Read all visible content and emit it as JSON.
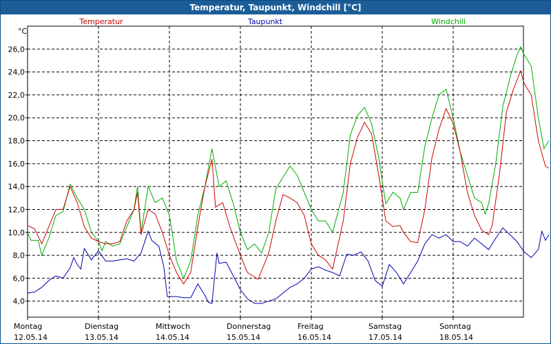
{
  "window": {
    "title": "Temperatur, Taupunkt, Windchill [°C]"
  },
  "chart_data": {
    "type": "line",
    "title": "Temperatur, Taupunkt, Windchill [°C]",
    "ylabel": "°C",
    "ylim": [
      2.6,
      28.0
    ],
    "xlim": [
      0,
      7
    ],
    "grid": true,
    "yticks": [
      "4,0",
      "6,0",
      "8,0",
      "10,0",
      "12,0",
      "14,0",
      "16,0",
      "18,0",
      "20,0",
      "22,0",
      "24,0",
      "26,0"
    ],
    "yticks_values": [
      4,
      6,
      8,
      10,
      12,
      14,
      16,
      18,
      20,
      22,
      24,
      26
    ],
    "days": [
      {
        "day": "Montag",
        "date": "12.05.14"
      },
      {
        "day": "Dienstag",
        "date": "13.05.14"
      },
      {
        "day": "Mittwoch",
        "date": "14.05.14"
      },
      {
        "day": "Donnerstag",
        "date": "15.05.14"
      },
      {
        "day": "Freitag",
        "date": "16.05.14"
      },
      {
        "day": "Samstag",
        "date": "17.05.14"
      },
      {
        "day": "Sonntag",
        "date": "18.05.14"
      }
    ],
    "series": [
      {
        "name": "Temperatur",
        "color": "#cc0000",
        "points": [
          [
            0,
            10.6
          ],
          [
            0.1,
            10.3
          ],
          [
            0.2,
            9.0
          ],
          [
            0.3,
            10.5
          ],
          [
            0.4,
            12.0
          ],
          [
            0.5,
            12.0
          ],
          [
            0.6,
            14.0
          ],
          [
            0.7,
            12.6
          ],
          [
            0.8,
            10.5
          ],
          [
            0.9,
            9.5
          ],
          [
            1.0,
            9.2
          ],
          [
            1.1,
            9.0
          ],
          [
            1.2,
            9.0
          ],
          [
            1.3,
            9.2
          ],
          [
            1.4,
            11.0
          ],
          [
            1.5,
            12.0
          ],
          [
            1.55,
            13.5
          ],
          [
            1.6,
            9.8
          ],
          [
            1.7,
            12.0
          ],
          [
            1.8,
            11.6
          ],
          [
            1.9,
            10.0
          ],
          [
            2.0,
            8.0
          ],
          [
            2.1,
            6.5
          ],
          [
            2.2,
            5.5
          ],
          [
            2.3,
            6.5
          ],
          [
            2.4,
            10.5
          ],
          [
            2.5,
            14.0
          ],
          [
            2.6,
            16.4
          ],
          [
            2.65,
            12.2
          ],
          [
            2.75,
            12.6
          ],
          [
            2.85,
            10.5
          ],
          [
            3.0,
            8.0
          ],
          [
            3.1,
            6.5
          ],
          [
            3.25,
            5.9
          ],
          [
            3.4,
            8.2
          ],
          [
            3.5,
            11.0
          ],
          [
            3.6,
            13.3
          ],
          [
            3.7,
            13.0
          ],
          [
            3.8,
            12.6
          ],
          [
            3.9,
            11.5
          ],
          [
            4.0,
            9.0
          ],
          [
            4.1,
            8.0
          ],
          [
            4.2,
            7.6
          ],
          [
            4.3,
            6.8
          ],
          [
            4.45,
            11.0
          ],
          [
            4.55,
            16.0
          ],
          [
            4.65,
            18.3
          ],
          [
            4.75,
            19.6
          ],
          [
            4.85,
            18.6
          ],
          [
            4.95,
            15.0
          ],
          [
            5.05,
            11.0
          ],
          [
            5.15,
            10.5
          ],
          [
            5.25,
            10.6
          ],
          [
            5.3,
            10.0
          ],
          [
            5.4,
            9.2
          ],
          [
            5.5,
            9.1
          ],
          [
            5.6,
            12.0
          ],
          [
            5.7,
            16.5
          ],
          [
            5.8,
            19.0
          ],
          [
            5.9,
            20.8
          ],
          [
            6.0,
            19.5
          ],
          [
            6.1,
            17.0
          ],
          [
            6.2,
            13.5
          ],
          [
            6.3,
            11.5
          ],
          [
            6.4,
            10.2
          ],
          [
            6.5,
            9.8
          ],
          [
            6.55,
            10.6
          ],
          [
            6.65,
            15.0
          ],
          [
            6.75,
            20.5
          ],
          [
            6.85,
            22.5
          ],
          [
            6.95,
            24.1
          ],
          [
            7.0,
            23.0
          ],
          [
            7.1,
            22.0
          ],
          [
            7.2,
            18.0
          ],
          [
            7.3,
            15.8
          ],
          [
            7.35,
            15.6
          ]
        ]
      },
      {
        "name": "Taupunkt",
        "color": "#0000aa",
        "points": [
          [
            0,
            4.7
          ],
          [
            0.1,
            4.8
          ],
          [
            0.2,
            5.2
          ],
          [
            0.3,
            5.8
          ],
          [
            0.4,
            6.2
          ],
          [
            0.5,
            6.0
          ],
          [
            0.6,
            6.9
          ],
          [
            0.65,
            7.8
          ],
          [
            0.7,
            7.2
          ],
          [
            0.75,
            6.8
          ],
          [
            0.8,
            8.6
          ],
          [
            0.9,
            7.6
          ],
          [
            1.0,
            8.4
          ],
          [
            1.1,
            7.5
          ],
          [
            1.2,
            7.5
          ],
          [
            1.3,
            7.6
          ],
          [
            1.4,
            7.7
          ],
          [
            1.5,
            7.5
          ],
          [
            1.6,
            8.2
          ],
          [
            1.7,
            10.1
          ],
          [
            1.75,
            9.3
          ],
          [
            1.85,
            8.8
          ],
          [
            1.92,
            7.0
          ],
          [
            1.97,
            4.4
          ],
          [
            2.1,
            4.4
          ],
          [
            2.2,
            4.3
          ],
          [
            2.3,
            4.3
          ],
          [
            2.4,
            5.5
          ],
          [
            2.5,
            4.5
          ],
          [
            2.55,
            3.9
          ],
          [
            2.6,
            3.8
          ],
          [
            2.67,
            8.2
          ],
          [
            2.7,
            7.3
          ],
          [
            2.8,
            7.4
          ],
          [
            2.9,
            6.2
          ],
          [
            3.0,
            5.0
          ],
          [
            3.1,
            4.2
          ],
          [
            3.2,
            3.8
          ],
          [
            3.3,
            3.8
          ],
          [
            3.4,
            4.0
          ],
          [
            3.5,
            4.2
          ],
          [
            3.6,
            4.7
          ],
          [
            3.7,
            5.2
          ],
          [
            3.8,
            5.5
          ],
          [
            3.9,
            6.0
          ],
          [
            4.0,
            6.8
          ],
          [
            4.1,
            7.0
          ],
          [
            4.2,
            6.7
          ],
          [
            4.3,
            6.5
          ],
          [
            4.4,
            6.2
          ],
          [
            4.5,
            8.1
          ],
          [
            4.6,
            8.0
          ],
          [
            4.7,
            8.3
          ],
          [
            4.8,
            7.5
          ],
          [
            4.9,
            5.8
          ],
          [
            5.0,
            5.3
          ],
          [
            5.1,
            7.2
          ],
          [
            5.2,
            6.5
          ],
          [
            5.3,
            5.5
          ],
          [
            5.4,
            6.5
          ],
          [
            5.5,
            7.5
          ],
          [
            5.6,
            9.0
          ],
          [
            5.7,
            9.8
          ],
          [
            5.8,
            9.5
          ],
          [
            5.9,
            9.8
          ],
          [
            6.0,
            9.2
          ],
          [
            6.1,
            9.2
          ],
          [
            6.2,
            8.8
          ],
          [
            6.3,
            9.5
          ],
          [
            6.4,
            9.0
          ],
          [
            6.5,
            8.5
          ],
          [
            6.6,
            9.5
          ],
          [
            6.7,
            10.4
          ],
          [
            6.8,
            9.8
          ],
          [
            6.9,
            9.2
          ],
          [
            7.0,
            8.3
          ],
          [
            7.1,
            7.8
          ],
          [
            7.2,
            8.5
          ],
          [
            7.25,
            10.1
          ],
          [
            7.3,
            9.3
          ],
          [
            7.35,
            9.8
          ]
        ]
      },
      {
        "name": "Windchill",
        "color": "#00aa00",
        "points": [
          [
            0,
            10.0
          ],
          [
            0.05,
            9.3
          ],
          [
            0.15,
            9.3
          ],
          [
            0.2,
            8.0
          ],
          [
            0.3,
            9.5
          ],
          [
            0.4,
            11.5
          ],
          [
            0.5,
            11.8
          ],
          [
            0.6,
            14.2
          ],
          [
            0.7,
            13.0
          ],
          [
            0.8,
            12.0
          ],
          [
            0.9,
            10.0
          ],
          [
            1.0,
            9.2
          ],
          [
            1.05,
            8.4
          ],
          [
            1.1,
            9.2
          ],
          [
            1.2,
            8.8
          ],
          [
            1.3,
            9.0
          ],
          [
            1.4,
            10.5
          ],
          [
            1.5,
            12.0
          ],
          [
            1.55,
            14.0
          ],
          [
            1.6,
            10.0
          ],
          [
            1.7,
            14.0
          ],
          [
            1.8,
            12.6
          ],
          [
            1.9,
            13.0
          ],
          [
            2.0,
            11.5
          ],
          [
            2.1,
            7.5
          ],
          [
            2.2,
            6.0
          ],
          [
            2.3,
            7.5
          ],
          [
            2.4,
            11.5
          ],
          [
            2.5,
            14.0
          ],
          [
            2.6,
            17.3
          ],
          [
            2.7,
            14.0
          ],
          [
            2.8,
            14.5
          ],
          [
            2.9,
            12.5
          ],
          [
            3.0,
            10.0
          ],
          [
            3.1,
            8.5
          ],
          [
            3.2,
            9.0
          ],
          [
            3.3,
            8.2
          ],
          [
            3.4,
            10.0
          ],
          [
            3.5,
            13.8
          ],
          [
            3.6,
            14.8
          ],
          [
            3.7,
            15.8
          ],
          [
            3.8,
            15.0
          ],
          [
            3.9,
            13.5
          ],
          [
            4.0,
            12.0
          ],
          [
            4.1,
            11.0
          ],
          [
            4.2,
            11.0
          ],
          [
            4.3,
            10.0
          ],
          [
            4.45,
            13.5
          ],
          [
            4.55,
            18.5
          ],
          [
            4.65,
            20.2
          ],
          [
            4.75,
            20.9
          ],
          [
            4.85,
            19.5
          ],
          [
            4.95,
            16.5
          ],
          [
            5.05,
            12.5
          ],
          [
            5.15,
            13.5
          ],
          [
            5.25,
            13.0
          ],
          [
            5.3,
            12.0
          ],
          [
            5.4,
            13.5
          ],
          [
            5.5,
            13.5
          ],
          [
            5.6,
            17.5
          ],
          [
            5.7,
            20.0
          ],
          [
            5.8,
            22.0
          ],
          [
            5.9,
            22.5
          ],
          [
            6.0,
            20.0
          ],
          [
            6.1,
            17.0
          ],
          [
            6.2,
            15.0
          ],
          [
            6.3,
            13.0
          ],
          [
            6.4,
            12.6
          ],
          [
            6.45,
            11.6
          ],
          [
            6.5,
            12.5
          ],
          [
            6.6,
            16.0
          ],
          [
            6.7,
            21.0
          ],
          [
            6.8,
            23.5
          ],
          [
            6.9,
            25.5
          ],
          [
            6.95,
            26.2
          ],
          [
            7.0,
            25.5
          ],
          [
            7.1,
            24.5
          ],
          [
            7.2,
            20.0
          ],
          [
            7.28,
            17.3
          ],
          [
            7.35,
            18.0
          ]
        ]
      }
    ]
  }
}
